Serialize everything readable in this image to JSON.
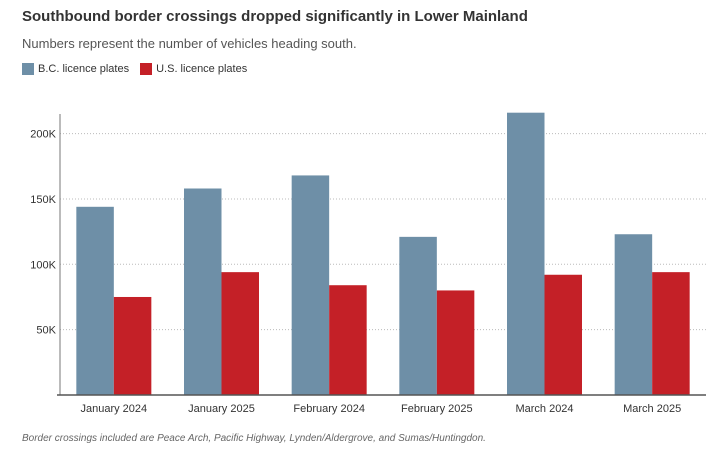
{
  "chart_data": {
    "type": "bar",
    "title": "Southbound border crossings dropped significantly in Lower Mainland",
    "subtitle": "Numbers represent the number of vehicles heading south.",
    "categories": [
      "January 2024",
      "January 2025",
      "February 2024",
      "February 2025",
      "March 2024",
      "March 2025"
    ],
    "series": [
      {
        "name": "B.C. licence plates",
        "color": "#6e8fa7",
        "values": [
          144000,
          158000,
          168000,
          121000,
          216000,
          123000
        ]
      },
      {
        "name": "U.S. licence plates",
        "color": "#c42027",
        "values": [
          75000,
          94000,
          84000,
          80000,
          92000,
          94000
        ]
      }
    ],
    "yticks": [
      50000,
      100000,
      150000,
      200000
    ],
    "ytick_labels": [
      "50K",
      "100K",
      "150K",
      "200K"
    ],
    "ylim": [
      0,
      215000
    ],
    "xlabel": "",
    "ylabel": "",
    "grid": true,
    "legend_position": "top-left",
    "note": "Border crossings included are Peace Arch, Pacific Highway, Lynden/Aldergrove, and Sumas/Huntingdon."
  }
}
